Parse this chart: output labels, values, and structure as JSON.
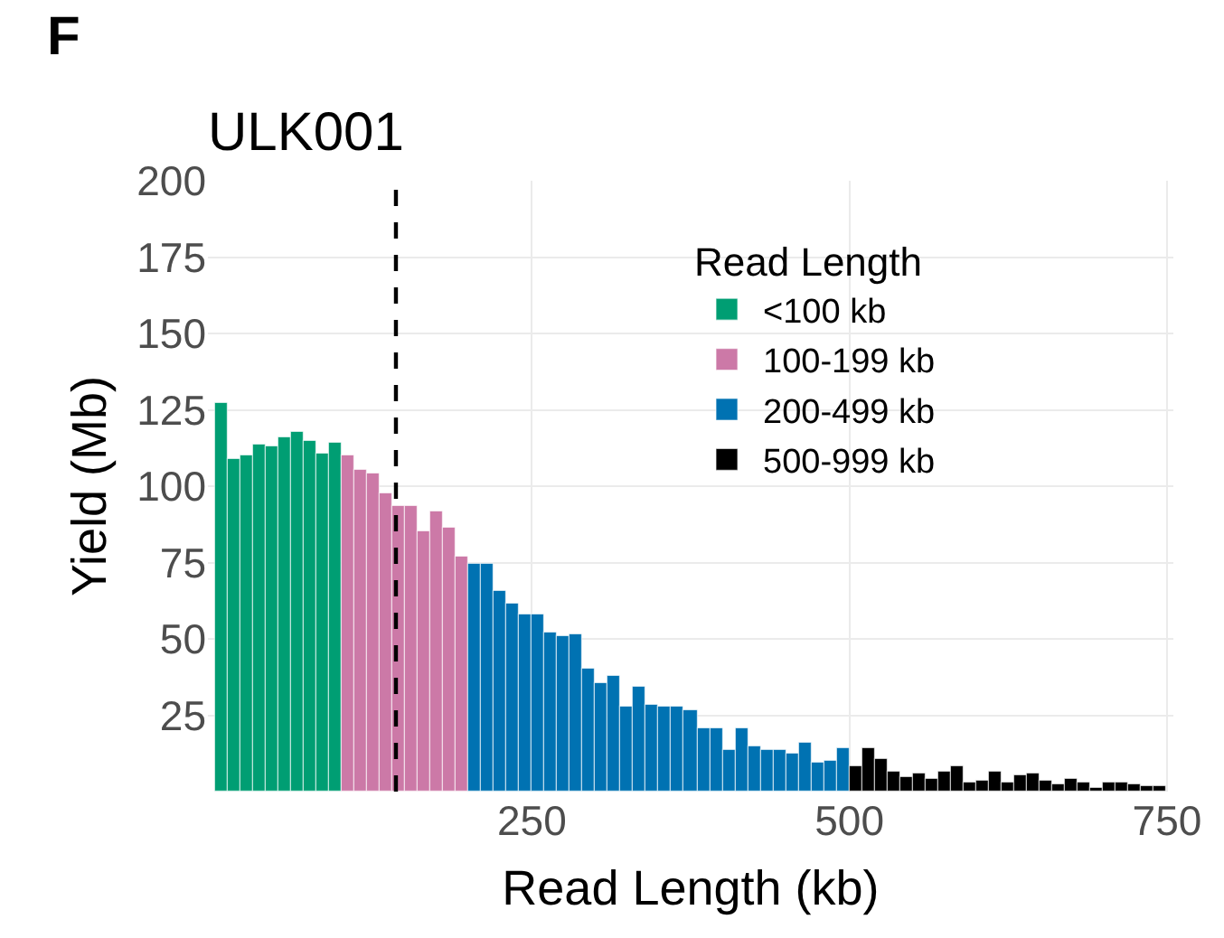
{
  "chart_data": {
    "type": "histogram",
    "title": "ULK001",
    "xlabel": "Read Length (kb)",
    "ylabel": "Yield (Mb)",
    "legend_title": "Read Length",
    "annotations": [
      "F"
    ],
    "bins": [
      0,
      10,
      20,
      30,
      40,
      50,
      60,
      70,
      80,
      90,
      100,
      110,
      120,
      130,
      140,
      150,
      160,
      170,
      180,
      190,
      200,
      210,
      220,
      230,
      240,
      250,
      260,
      270,
      280,
      290,
      300,
      310,
      320,
      330,
      340,
      350,
      360,
      370,
      380,
      390,
      400,
      410,
      420,
      430,
      440,
      450,
      460,
      470,
      480,
      490,
      500,
      510,
      520,
      530,
      540,
      550,
      560,
      570,
      580,
      590,
      600,
      610,
      620,
      630,
      640,
      650,
      660,
      670,
      680,
      690,
      700,
      710,
      720,
      730,
      740,
      750
    ],
    "series": [
      {
        "name": "<100 kb",
        "color": "#009e73",
        "values": [
          127,
          109,
          110,
          113.5,
          113,
          116,
          118,
          115,
          110.5,
          114,
          null,
          null,
          null,
          null,
          null,
          null,
          null,
          null,
          null,
          null,
          null,
          null,
          null,
          null,
          null,
          null,
          null,
          null,
          null,
          null,
          null,
          null,
          null,
          null,
          null,
          null,
          null,
          null,
          null,
          null,
          null,
          null,
          null,
          null,
          null,
          null,
          null,
          null,
          null,
          null,
          null,
          null,
          null,
          null,
          null,
          null,
          null,
          null,
          null,
          null,
          null,
          null,
          null,
          null,
          null,
          null,
          null,
          null,
          null,
          null,
          null,
          null,
          null,
          null,
          null
        ]
      },
      {
        "name": "100-199 kb",
        "color": "#cc79a7",
        "values": [
          null,
          null,
          null,
          null,
          null,
          null,
          null,
          null,
          null,
          null,
          110.3,
          105.5,
          104.4,
          97.4,
          93.3,
          93.3,
          85.3,
          92,
          86.3,
          76.8,
          null,
          null,
          null,
          null,
          null,
          null,
          null,
          null,
          null,
          null,
          null,
          null,
          null,
          null,
          null,
          null,
          null,
          null,
          null,
          null,
          null,
          null,
          null,
          null,
          null,
          null,
          null,
          null,
          null,
          null,
          null,
          null,
          null,
          null,
          null,
          null,
          null,
          null,
          null,
          null,
          null,
          null,
          null,
          null,
          null,
          null,
          null,
          null,
          null,
          null,
          null,
          null,
          null,
          null,
          null
        ]
      },
      {
        "name": "200-499 kb",
        "color": "#0072b2",
        "values": [
          null,
          null,
          null,
          null,
          null,
          null,
          null,
          null,
          null,
          null,
          null,
          null,
          null,
          null,
          null,
          null,
          null,
          null,
          null,
          null,
          74.6,
          74.6,
          65.7,
          61.7,
          57.9,
          57.9,
          52,
          50.8,
          51.6,
          40.5,
          35.7,
          37.7,
          27.6,
          34.3,
          28.2,
          27.6,
          27.6,
          26.8,
          20.6,
          20.6,
          13.5,
          20.6,
          14.6,
          13.9,
          13.8,
          12.2,
          16,
          9.4,
          10.2,
          14.4,
          null,
          null,
          null,
          null,
          null,
          null,
          null,
          null,
          null,
          null,
          null,
          null,
          null,
          null,
          null,
          null,
          null,
          null,
          null,
          null,
          null,
          null,
          null,
          null,
          null
        ]
      },
      {
        "name": "500-999 kb",
        "color": "#000000",
        "values": [
          null,
          null,
          null,
          null,
          null,
          null,
          null,
          null,
          null,
          null,
          null,
          null,
          null,
          null,
          null,
          null,
          null,
          null,
          null,
          null,
          null,
          null,
          null,
          null,
          null,
          null,
          null,
          null,
          null,
          null,
          null,
          null,
          null,
          null,
          null,
          null,
          null,
          null,
          null,
          null,
          null,
          null,
          null,
          null,
          null,
          null,
          null,
          null,
          null,
          null,
          8.1,
          14,
          10.4,
          6.5,
          4.7,
          5.7,
          3.9,
          6.3,
          8.3,
          3.1,
          3.3,
          6.3,
          2.8,
          5.1,
          5.9,
          3.3,
          2.2,
          4.1,
          3,
          1.2,
          3.1,
          3.1,
          2.4,
          2,
          1.6
        ]
      }
    ],
    "ref_lines": [
      {
        "axis": "x",
        "value": 143,
        "line_style": "dashed",
        "color": "#000000"
      }
    ],
    "xlim": [
      -5,
      755
    ],
    "xticks": [
      250,
      500,
      750
    ],
    "ylim": [
      0,
      200
    ],
    "yticks": [
      25,
      50,
      75,
      100,
      125,
      150,
      175,
      200
    ],
    "grid": true,
    "legend": "top right"
  }
}
